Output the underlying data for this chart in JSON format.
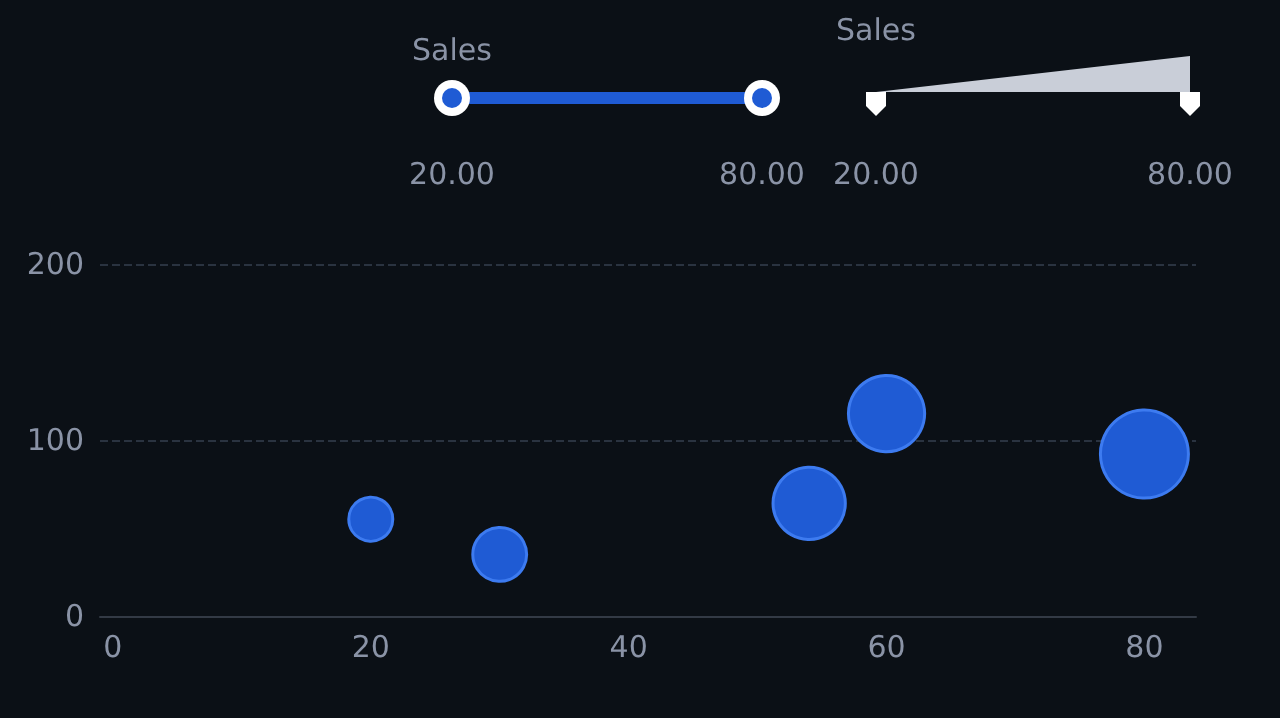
{
  "chart_data": {
    "type": "bubble",
    "x": [
      20,
      30,
      54,
      60,
      80
    ],
    "values": [
      55,
      35,
      64,
      115,
      92
    ],
    "sizes": [
      0.25,
      0.375,
      0.675,
      0.75,
      1
    ],
    "relative": false,
    "color": "#1f5bd4",
    "annotations": [
      "Sales",
      "20.00",
      "80.00",
      "Sales",
      "20.00",
      "80.00"
    ],
    "xlim": [
      -1,
      84
    ],
    "xticks": [
      0,
      20,
      40,
      60,
      80
    ],
    "ylim": [
      0,
      200
    ],
    "yticks": [
      0,
      100,
      200
    ],
    "grid": "y",
    "marker": "circle"
  }
}
